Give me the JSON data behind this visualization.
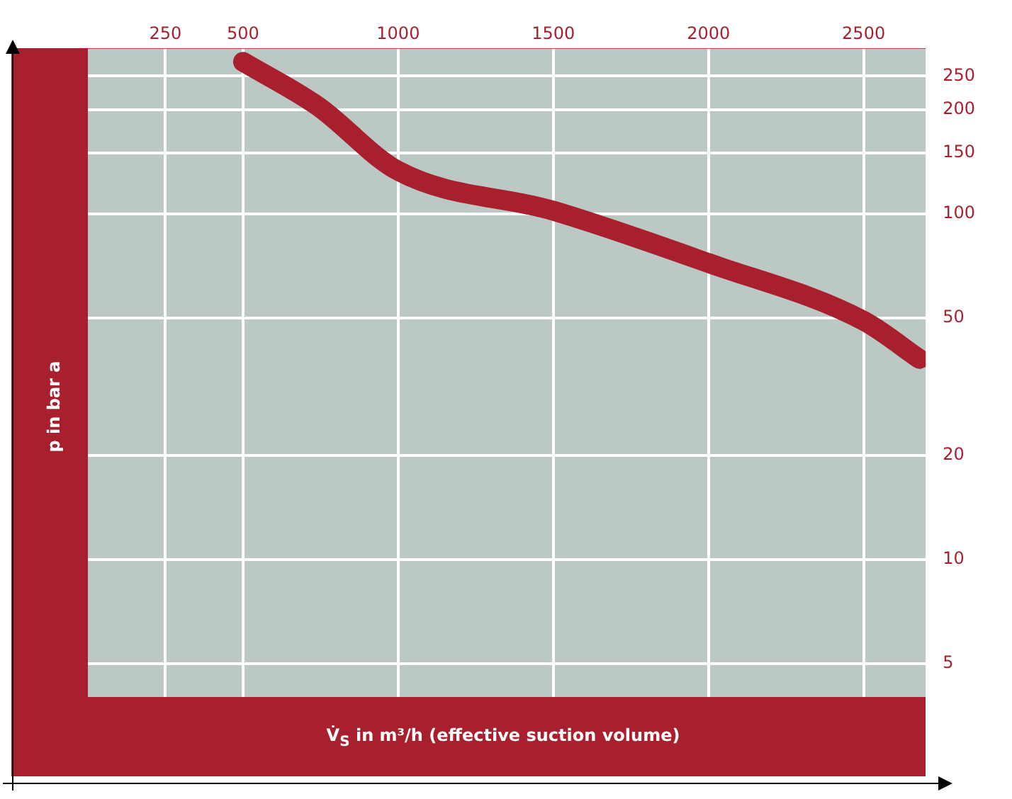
{
  "chart_data": {
    "type": "line",
    "xlabel": "V̇$_{S}$ in m³/h (effective suction volume)",
    "ylabel": "p in bar a",
    "x": [
      500,
      740,
      1000,
      1500,
      2000,
      2500,
      2680
    ],
    "series": [
      {
        "color": "#a8202e",
        "values": [
          275,
          205,
          133,
          102,
          72,
          49,
          38
        ]
      }
    ],
    "xlim": [
      0,
      2700
    ],
    "xticks": [
      250,
      500,
      1000,
      1500,
      2000,
      2500
    ],
    "ylim": [
      4,
      300
    ],
    "yticks": [
      5,
      10,
      20,
      50,
      100,
      150,
      200,
      250
    ],
    "log": "y",
    "grid": true,
    "legend": false,
    "marker": "none",
    "line_style": "solid"
  }
}
